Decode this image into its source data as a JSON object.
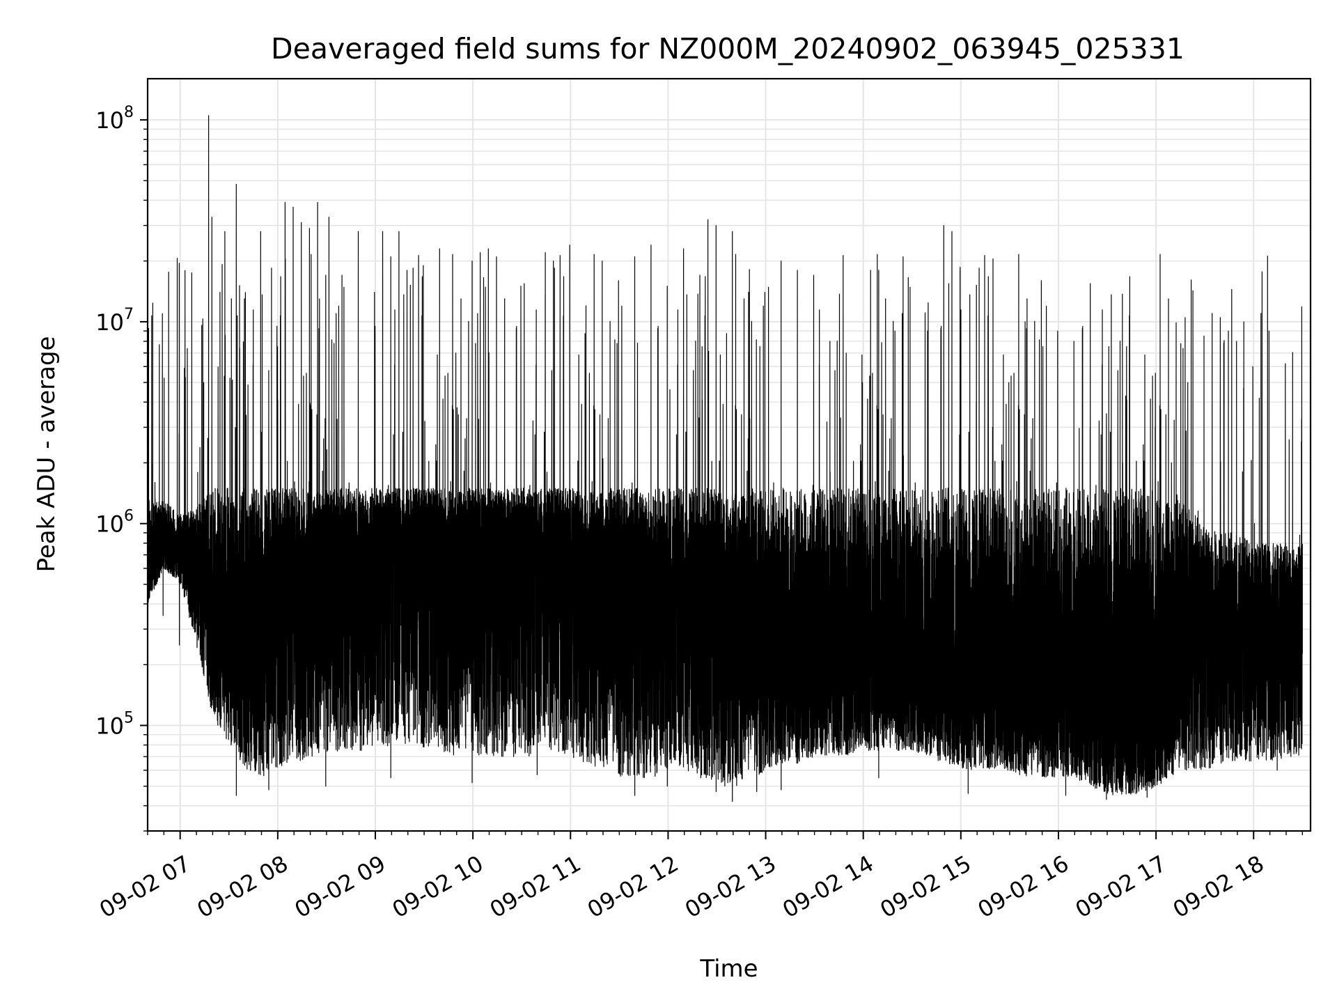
{
  "chart_data": {
    "type": "line",
    "title": "Deaveraged field sums for NZ000M_20240902_063945_025331",
    "xlabel": "Time",
    "ylabel": "Peak ADU - average",
    "yscale": "log",
    "ylim": [
      30000,
      160000000
    ],
    "xlim": [
      "2024-09-02 06:40",
      "2024-09-02 18:35"
    ],
    "grid": true,
    "line_color": "#000000",
    "grid_color": "#e5e5e5",
    "x_ticks": [
      "09-02 07",
      "09-02 08",
      "09-02 09",
      "09-02 10",
      "09-02 11",
      "09-02 12",
      "09-02 13",
      "09-02 14",
      "09-02 15",
      "09-02 16",
      "09-02 17",
      "09-02 18"
    ],
    "y_ticks": [
      {
        "value": 100000,
        "base": "10",
        "exp": "5"
      },
      {
        "value": 1000000,
        "base": "10",
        "exp": "6"
      },
      {
        "value": 10000000,
        "base": "10",
        "exp": "7"
      },
      {
        "value": 100000000,
        "base": "10",
        "exp": "8"
      }
    ],
    "series": [
      {
        "x": [
          "2024-09-02 06:40",
          "2024-09-02 06:50",
          "2024-09-02 07:00",
          "2024-09-02 07:10",
          "2024-09-02 07:20",
          "2024-09-02 07:30",
          "2024-09-02 07:40",
          "2024-09-02 07:50",
          "2024-09-02 08:00",
          "2024-09-02 08:10",
          "2024-09-02 08:20",
          "2024-09-02 08:30",
          "2024-09-02 08:40",
          "2024-09-02 08:50",
          "2024-09-02 09:00",
          "2024-09-02 09:10",
          "2024-09-02 09:20",
          "2024-09-02 09:30",
          "2024-09-02 09:40",
          "2024-09-02 09:50",
          "2024-09-02 10:00",
          "2024-09-02 10:10",
          "2024-09-02 10:20",
          "2024-09-02 10:30",
          "2024-09-02 10:40",
          "2024-09-02 10:50",
          "2024-09-02 11:00",
          "2024-09-02 11:10",
          "2024-09-02 11:20",
          "2024-09-02 11:30",
          "2024-09-02 11:40",
          "2024-09-02 11:50",
          "2024-09-02 12:00",
          "2024-09-02 12:10",
          "2024-09-02 12:20",
          "2024-09-02 12:30",
          "2024-09-02 12:40",
          "2024-09-02 12:50",
          "2024-09-02 13:00",
          "2024-09-02 13:10",
          "2024-09-02 13:20",
          "2024-09-02 13:30",
          "2024-09-02 13:40",
          "2024-09-02 13:50",
          "2024-09-02 14:00",
          "2024-09-02 14:10",
          "2024-09-02 14:20",
          "2024-09-02 14:30",
          "2024-09-02 14:40",
          "2024-09-02 14:50",
          "2024-09-02 15:00",
          "2024-09-02 15:10",
          "2024-09-02 15:20",
          "2024-09-02 15:30",
          "2024-09-02 15:40",
          "2024-09-02 15:50",
          "2024-09-02 16:00",
          "2024-09-02 16:10",
          "2024-09-02 16:20",
          "2024-09-02 16:30",
          "2024-09-02 16:40",
          "2024-09-02 16:50",
          "2024-09-02 17:00",
          "2024-09-02 17:10",
          "2024-09-02 17:20",
          "2024-09-02 17:30",
          "2024-09-02 17:40",
          "2024-09-02 17:50",
          "2024-09-02 18:00",
          "2024-09-02 18:10",
          "2024-09-02 18:20",
          "2024-09-02 18:30"
        ],
        "median": [
          500000,
          750000,
          800000,
          650000,
          400000,
          350000,
          300000,
          320000,
          450000,
          550000,
          600000,
          650000,
          700000,
          750000,
          800000,
          850000,
          850000,
          850000,
          800000,
          750000,
          800000,
          800000,
          850000,
          800000,
          750000,
          750000,
          700000,
          650000,
          600000,
          550000,
          500000,
          450000,
          500000,
          500000,
          450000,
          450000,
          400000,
          350000,
          250000,
          220000,
          200000,
          200000,
          210000,
          200000,
          200000,
          190000,
          180000,
          190000,
          180000,
          170000,
          160000,
          160000,
          170000,
          160000,
          150000,
          140000,
          150000,
          140000,
          130000,
          120000,
          110000,
          110000,
          120000,
          110000,
          400000,
          300000,
          280000,
          300000,
          260000,
          280000,
          350000,
          400000
        ],
        "low": [
          400000,
          600000,
          500000,
          250000,
          110000,
          80000,
          60000,
          55000,
          60000,
          65000,
          70000,
          70000,
          75000,
          75000,
          75000,
          80000,
          80000,
          75000,
          75000,
          70000,
          70000,
          70000,
          70000,
          70000,
          70000,
          70000,
          70000,
          65000,
          60000,
          55000,
          55000,
          55000,
          60000,
          60000,
          55000,
          50000,
          50000,
          50000,
          60000,
          65000,
          65000,
          70000,
          70000,
          70000,
          75000,
          75000,
          75000,
          75000,
          70000,
          65000,
          60000,
          60000,
          60000,
          60000,
          55000,
          55000,
          55000,
          55000,
          50000,
          45000,
          45000,
          45000,
          50000,
          55000,
          60000,
          60000,
          65000,
          65000,
          65000,
          65000,
          70000,
          70000
        ],
        "high": [
          1400000,
          1300000,
          1100000,
          1200000,
          1500000,
          1500000,
          1500000,
          1500000,
          1500000,
          1500000,
          1500000,
          1500000,
          1500000,
          1500000,
          1500000,
          1500000,
          1500000,
          1500000,
          1500000,
          1500000,
          1500000,
          1500000,
          1500000,
          1500000,
          1500000,
          1500000,
          1500000,
          1500000,
          1500000,
          1500000,
          1500000,
          1500000,
          1500000,
          1500000,
          1500000,
          1500000,
          1500000,
          1500000,
          1500000,
          1500000,
          1500000,
          1500000,
          1500000,
          1500000,
          1500000,
          1500000,
          1500000,
          1500000,
          1500000,
          1500000,
          1500000,
          1500000,
          1500000,
          1500000,
          1500000,
          1500000,
          1500000,
          1500000,
          1500000,
          1500000,
          1500000,
          1500000,
          1500000,
          1500000,
          1200000,
          1000000,
          900000,
          900000,
          800000,
          800000,
          800000,
          800000
        ],
        "spikes": [
          [
            "2024-09-02 06:45",
            1600000
          ],
          [
            "2024-09-02 07:00",
            2400000
          ],
          [
            "2024-09-02 07:15",
            5000000
          ],
          [
            "2024-09-02 07:18",
            105000000
          ],
          [
            "2024-09-02 07:20",
            33000000
          ],
          [
            "2024-09-02 07:25",
            14000000
          ],
          [
            "2024-09-02 07:28",
            28000000
          ],
          [
            "2024-09-02 07:32",
            13000000
          ],
          [
            "2024-09-02 07:35",
            48000000
          ],
          [
            "2024-09-02 07:40",
            13000000
          ],
          [
            "2024-09-02 07:50",
            28000000
          ],
          [
            "2024-09-02 08:00",
            9500000
          ],
          [
            "2024-09-02 08:05",
            39000000
          ],
          [
            "2024-09-02 08:10",
            37000000
          ],
          [
            "2024-09-02 08:15",
            31000000
          ],
          [
            "2024-09-02 08:20",
            29000000
          ],
          [
            "2024-09-02 08:25",
            39000000
          ],
          [
            "2024-09-02 08:30",
            17000000
          ],
          [
            "2024-09-02 08:32",
            33000000
          ],
          [
            "2024-09-02 08:40",
            17000000
          ],
          [
            "2024-09-02 08:50",
            28000000
          ],
          [
            "2024-09-02 09:00",
            14000000
          ],
          [
            "2024-09-02 09:05",
            28000000
          ],
          [
            "2024-09-02 09:10",
            21000000
          ],
          [
            "2024-09-02 09:15",
            28000000
          ],
          [
            "2024-09-02 09:20",
            18000000
          ],
          [
            "2024-09-02 09:30",
            19000000
          ],
          [
            "2024-09-02 09:40",
            23000000
          ],
          [
            "2024-09-02 09:50",
            7000000
          ],
          [
            "2024-09-02 10:00",
            20000000
          ],
          [
            "2024-09-02 10:05",
            22000000
          ],
          [
            "2024-09-02 10:10",
            23000000
          ],
          [
            "2024-09-02 10:15",
            21000000
          ],
          [
            "2024-09-02 10:20",
            13000000
          ],
          [
            "2024-09-02 10:30",
            15000000
          ],
          [
            "2024-09-02 10:45",
            22000000
          ],
          [
            "2024-09-02 10:50",
            20000000
          ],
          [
            "2024-09-02 11:00",
            24000000
          ],
          [
            "2024-09-02 11:10",
            12000000
          ],
          [
            "2024-09-02 11:20",
            20000000
          ],
          [
            "2024-09-02 11:30",
            16000000
          ],
          [
            "2024-09-02 11:40",
            21000000
          ],
          [
            "2024-09-02 11:50",
            24000000
          ],
          [
            "2024-09-02 12:00",
            15000000
          ],
          [
            "2024-09-02 12:10",
            23000000
          ],
          [
            "2024-09-02 12:20",
            17000000
          ],
          [
            "2024-09-02 12:25",
            32000000
          ],
          [
            "2024-09-02 12:30",
            30000000
          ],
          [
            "2024-09-02 12:40",
            28000000
          ],
          [
            "2024-09-02 12:50",
            14000000
          ],
          [
            "2024-09-02 13:00",
            14000000
          ],
          [
            "2024-09-02 13:10",
            20000000
          ],
          [
            "2024-09-02 13:20",
            18000000
          ],
          [
            "2024-09-02 13:30",
            17000000
          ],
          [
            "2024-09-02 13:40",
            8000000
          ],
          [
            "2024-09-02 13:50",
            7000000
          ],
          [
            "2024-09-02 14:00",
            5000000
          ],
          [
            "2024-09-02 14:05",
            18000000
          ],
          [
            "2024-09-02 14:10",
            18000000
          ],
          [
            "2024-09-02 14:20",
            9000000
          ],
          [
            "2024-09-02 14:25",
            21000000
          ],
          [
            "2024-09-02 14:40",
            9000000
          ],
          [
            "2024-09-02 14:50",
            30000000
          ],
          [
            "2024-09-02 14:55",
            28000000
          ],
          [
            "2024-09-02 15:00",
            18000000
          ],
          [
            "2024-09-02 15:10",
            4000000
          ],
          [
            "2024-09-02 15:20",
            3000000
          ],
          [
            "2024-09-02 15:30",
            5000000
          ],
          [
            "2024-09-02 15:40",
            10000000
          ],
          [
            "2024-09-02 15:50",
            16000000
          ],
          [
            "2024-09-02 16:00",
            9000000
          ],
          [
            "2024-09-02 16:10",
            8000000
          ],
          [
            "2024-09-02 16:20",
            3000000
          ],
          [
            "2024-09-02 16:30",
            3500000
          ],
          [
            "2024-09-02 16:40",
            2000000
          ],
          [
            "2024-09-02 17:00",
            3000000
          ],
          [
            "2024-09-02 17:10",
            2000000
          ],
          [
            "2024-09-02 17:20",
            5000000
          ],
          [
            "2024-09-02 17:30",
            8500000
          ],
          [
            "2024-09-02 17:35",
            11000000
          ],
          [
            "2024-09-02 17:40",
            10500000
          ],
          [
            "2024-09-02 17:45",
            9000000
          ],
          [
            "2024-09-02 17:50",
            8000000
          ],
          [
            "2024-09-02 18:00",
            6000000
          ],
          [
            "2024-09-02 18:05",
            11000000
          ],
          [
            "2024-09-02 18:10",
            9000000
          ],
          [
            "2024-09-02 18:20",
            6200000
          ],
          [
            "2024-09-02 18:30",
            3300000
          ]
        ],
        "dips": [
          [
            "2024-09-02 06:50",
            350000
          ],
          [
            "2024-09-02 07:00",
            250000
          ],
          [
            "2024-09-02 07:35",
            45000
          ],
          [
            "2024-09-02 07:55",
            48000
          ],
          [
            "2024-09-02 08:30",
            50000
          ],
          [
            "2024-09-02 09:10",
            55000
          ],
          [
            "2024-09-02 10:00",
            52000
          ],
          [
            "2024-09-02 10:40",
            57000
          ],
          [
            "2024-09-02 11:40",
            45000
          ],
          [
            "2024-09-02 12:00",
            50000
          ],
          [
            "2024-09-02 12:30",
            47000
          ],
          [
            "2024-09-02 12:40",
            42000
          ],
          [
            "2024-09-02 12:55",
            47000
          ],
          [
            "2024-09-02 13:10",
            48000
          ],
          [
            "2024-09-02 14:10",
            55000
          ],
          [
            "2024-09-02 15:05",
            46000
          ],
          [
            "2024-09-02 16:05",
            45000
          ],
          [
            "2024-09-02 16:30",
            43000
          ],
          [
            "2024-09-02 16:55",
            44000
          ],
          [
            "2024-09-02 18:15",
            60000
          ]
        ]
      }
    ]
  }
}
